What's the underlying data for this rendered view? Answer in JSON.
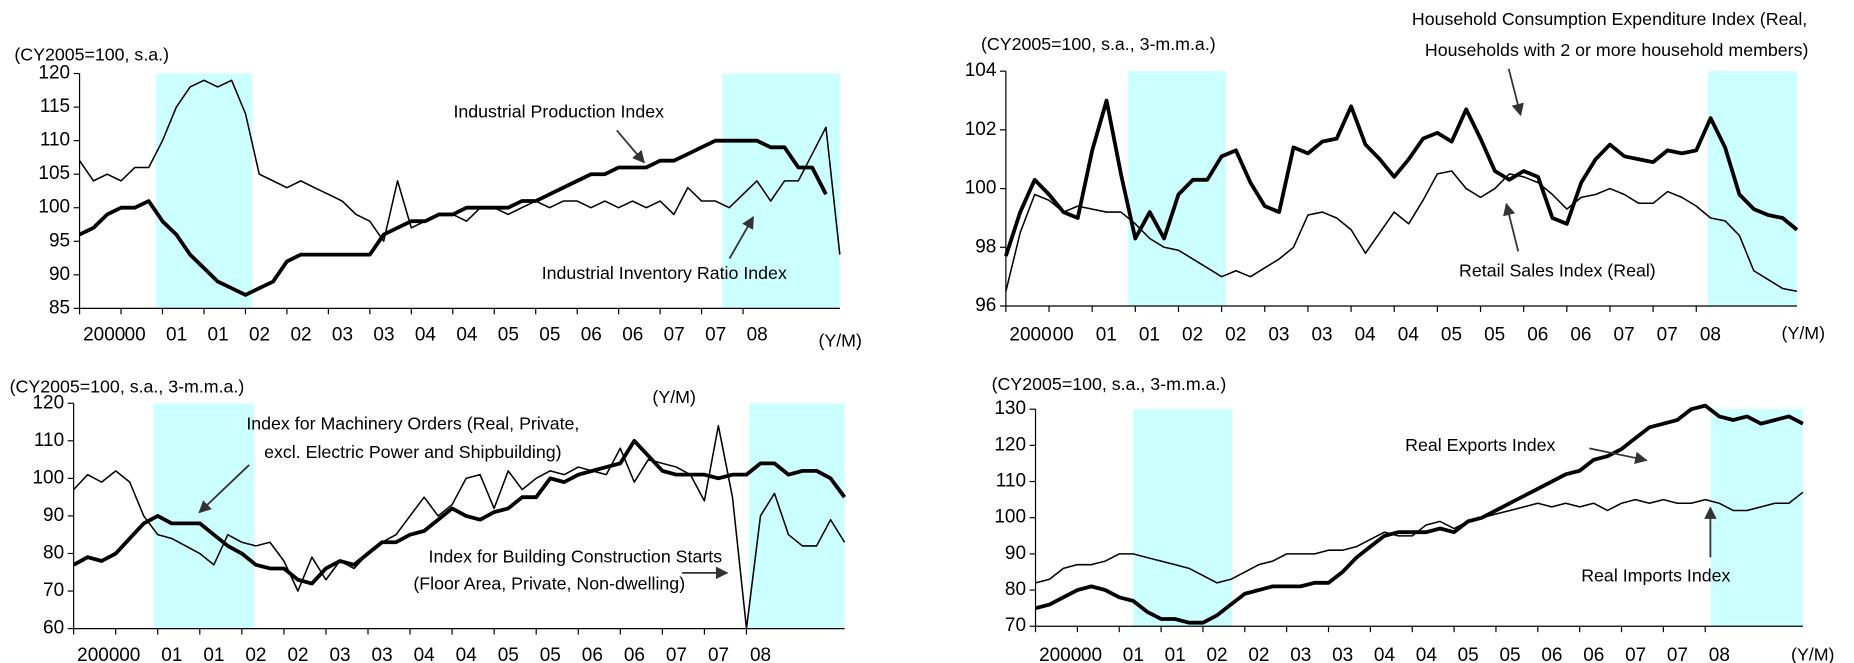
{
  "chart_data": [
    {
      "type": "line",
      "unit_label": "(CY2005=100, s.a.)",
      "x_unit": "(Y/M)",
      "categories": [
        "2000",
        null,
        null,
        "00",
        null,
        null,
        "01",
        null,
        null,
        "01",
        null,
        null,
        "02",
        null,
        null,
        "02",
        null,
        null,
        "03",
        null,
        null,
        "03",
        null,
        null,
        "04",
        null,
        null,
        "04",
        null,
        null,
        "05",
        null,
        null,
        "05",
        null,
        null,
        "06",
        null,
        null,
        "06",
        null,
        null,
        "07",
        null,
        null,
        "07",
        null,
        null,
        "08",
        null,
        null,
        null,
        null,
        null,
        null,
        null
      ],
      "ylim": [
        85,
        120
      ],
      "yticks": [
        85,
        90,
        95,
        100,
        105,
        110,
        115,
        120
      ],
      "shaded_periods": [
        [
          5.5,
          12.5
        ],
        [
          46.5,
          55
        ]
      ],
      "shade_color": "#ccffff",
      "series": [
        {
          "name": "Industrial Production Index",
          "color": "#000000",
          "thick": true,
          "values": [
            96,
            97,
            99,
            100,
            100,
            101,
            98,
            96,
            93,
            91,
            89,
            88,
            87,
            88,
            89,
            92,
            93,
            93,
            93,
            93,
            93,
            93,
            96,
            97,
            98,
            98,
            99,
            99,
            100,
            100,
            100,
            100,
            101,
            101,
            102,
            103,
            104,
            105,
            105,
            106,
            106,
            106,
            107,
            107,
            108,
            109,
            110,
            110,
            110,
            110,
            109,
            109,
            106,
            106,
            102,
            null
          ]
        },
        {
          "name": "Industrial Inventory Ratio Index",
          "color": "#000000",
          "thick": false,
          "values": [
            107,
            104,
            105,
            104,
            106,
            106,
            110,
            115,
            118,
            119,
            118,
            119,
            114,
            105,
            104,
            103,
            104,
            103,
            102,
            101,
            99,
            98,
            95,
            104,
            97,
            98,
            99,
            99,
            98,
            100,
            100,
            99,
            100,
            101,
            100,
            101,
            101,
            100,
            101,
            100,
            101,
            100,
            101,
            99,
            103,
            101,
            101,
            100,
            102,
            104,
            101,
            104,
            104,
            108,
            112,
            93
          ]
        }
      ]
    },
    {
      "type": "line",
      "unit_label": "(CY2005=100, s.a., 3-m.m.a.)",
      "x_unit": "(Y/M)",
      "categories": [
        "2000",
        null,
        null,
        "00",
        null,
        null,
        "01",
        null,
        null,
        "01",
        null,
        null,
        "02",
        null,
        null,
        "02",
        null,
        null,
        "03",
        null,
        null,
        "03",
        null,
        null,
        "04",
        null,
        null,
        "04",
        null,
        null,
        "05",
        null,
        null,
        "05",
        null,
        null,
        "06",
        null,
        null,
        "06",
        null,
        null,
        "07",
        null,
        null,
        "07",
        null,
        null,
        "08",
        null,
        null,
        null,
        null,
        null,
        null,
        null
      ],
      "ylim": [
        96,
        104
      ],
      "yticks": [
        96,
        98,
        100,
        102,
        104
      ],
      "shaded_periods": [
        [
          8.5,
          15.3
        ],
        [
          48.8,
          55
        ]
      ],
      "shade_color": "#ccffff",
      "series": [
        {
          "name": "Household Consumption Expenditure Index (Real,\nHouseholds with 2 or more household members)",
          "color": "#000000",
          "thick": true,
          "values": [
            97.7,
            99.2,
            100.3,
            99.8,
            99.2,
            99.0,
            101.3,
            103.0,
            100.5,
            98.3,
            99.2,
            98.3,
            99.8,
            100.3,
            100.3,
            101.1,
            101.3,
            100.2,
            99.4,
            99.2,
            101.4,
            101.2,
            101.6,
            101.7,
            102.8,
            101.5,
            101.0,
            100.4,
            101.0,
            101.7,
            101.9,
            101.6,
            102.7,
            101.7,
            100.6,
            100.3,
            100.6,
            100.4,
            99.0,
            98.8,
            100.2,
            101.0,
            101.5,
            101.1,
            101.0,
            100.9,
            101.3,
            101.2,
            101.3,
            102.4,
            101.4,
            99.8,
            99.3,
            99.1,
            99.0,
            98.6
          ]
        },
        {
          "name": "Retail Sales Index (Real)",
          "color": "#000000",
          "thick": false,
          "values": [
            96.5,
            98.5,
            99.8,
            99.6,
            99.2,
            99.4,
            99.3,
            99.2,
            99.2,
            98.8,
            98.3,
            98.0,
            97.9,
            97.6,
            97.3,
            97.0,
            97.2,
            97.0,
            97.3,
            97.6,
            98.0,
            99.1,
            99.2,
            99.0,
            98.6,
            97.8,
            98.5,
            99.2,
            98.8,
            99.6,
            100.5,
            100.6,
            100.0,
            99.7,
            100.0,
            100.5,
            100.4,
            100.2,
            99.8,
            99.3,
            99.7,
            99.8,
            100.0,
            99.8,
            99.5,
            99.5,
            99.9,
            99.7,
            99.4,
            99.0,
            98.9,
            98.4,
            97.2,
            96.9,
            96.6,
            96.5
          ]
        }
      ]
    },
    {
      "type": "line",
      "unit_label": "(CY2005=100, s.a., 3-m.m.a.)",
      "x_unit": "(Y/M)",
      "categories": [
        "2000",
        null,
        null,
        "00",
        null,
        null,
        "01",
        null,
        null,
        "01",
        null,
        null,
        "02",
        null,
        null,
        "02",
        null,
        null,
        "03",
        null,
        null,
        "03",
        null,
        null,
        "04",
        null,
        null,
        "04",
        null,
        null,
        "05",
        null,
        null,
        "05",
        null,
        null,
        "06",
        null,
        null,
        "06",
        null,
        null,
        "07",
        null,
        null,
        "07",
        null,
        null,
        "08",
        null,
        null,
        null,
        null,
        null,
        null,
        null
      ],
      "ylim": [
        60,
        120
      ],
      "yticks": [
        60,
        70,
        80,
        90,
        100,
        110,
        120
      ],
      "shaded_periods": [
        [
          5.7,
          12.9
        ],
        [
          48.2,
          55
        ]
      ],
      "shade_color": "#ccffff",
      "series": [
        {
          "name": "Index for Machinery Orders (Real, Private,\nexcl. Electric Power and Shipbuilding)",
          "color": "#000000",
          "thick": true,
          "values": [
            77,
            79,
            78,
            80,
            84,
            88,
            90,
            88,
            88,
            88,
            85,
            82,
            80,
            77,
            76,
            76,
            73,
            72,
            76,
            78,
            77,
            80,
            83,
            83,
            85,
            86,
            89,
            92,
            90,
            89,
            91,
            92,
            95,
            95,
            100,
            99,
            101,
            102,
            103,
            104,
            110,
            106,
            102,
            101,
            101,
            101,
            100,
            101,
            101,
            104,
            104,
            101,
            102,
            102,
            100,
            95
          ]
        },
        {
          "name": "Index for Building Construction Starts\n(Floor Area, Private, Non-dwelling)",
          "color": "#000000",
          "thick": false,
          "values": [
            97,
            101,
            99,
            102,
            99,
            90,
            85,
            84,
            82,
            80,
            77,
            85,
            83,
            82,
            83,
            78,
            70,
            79,
            73,
            78,
            76,
            80,
            83,
            85,
            90,
            95,
            90,
            93,
            100,
            101,
            92,
            102,
            97,
            100,
            102,
            101,
            103,
            102,
            101,
            108,
            99,
            105,
            104,
            103,
            101,
            94,
            114,
            95,
            60,
            90,
            96,
            85,
            82,
            82,
            89,
            83
          ]
        }
      ]
    },
    {
      "type": "line",
      "unit_label": "(CY2005=100, s.a., 3-m.m.a.)",
      "x_unit": "(Y/M)",
      "categories": [
        "2000",
        null,
        null,
        "00",
        null,
        null,
        "01",
        null,
        null,
        "01",
        null,
        null,
        "02",
        null,
        null,
        "02",
        null,
        null,
        "03",
        null,
        null,
        "03",
        null,
        null,
        "04",
        null,
        null,
        "04",
        null,
        null,
        "05",
        null,
        null,
        "05",
        null,
        null,
        "06",
        null,
        null,
        "06",
        null,
        null,
        "07",
        null,
        null,
        "07",
        null,
        null,
        "08",
        null,
        null,
        null,
        null,
        null,
        null,
        null
      ],
      "ylim": [
        70,
        130
      ],
      "yticks": [
        70,
        80,
        90,
        100,
        110,
        120,
        130
      ],
      "shaded_periods": [
        [
          7,
          14.1
        ],
        [
          48.4,
          55
        ]
      ],
      "shade_color": "#ccffff",
      "series": [
        {
          "name": "Real Exports Index",
          "color": "#000000",
          "thick": true,
          "values": [
            75,
            76,
            78,
            80,
            81,
            80,
            78,
            77,
            74,
            72,
            72,
            71,
            71,
            73,
            76,
            79,
            80,
            81,
            81,
            81,
            82,
            82,
            85,
            89,
            92,
            95,
            96,
            96,
            96,
            97,
            96,
            99,
            100,
            102,
            104,
            106,
            108,
            110,
            112,
            113,
            116,
            117,
            119,
            122,
            125,
            126,
            127,
            130,
            131,
            128,
            127,
            128,
            126,
            127,
            128,
            126
          ]
        },
        {
          "name": "Real Imports Index",
          "color": "#000000",
          "thick": false,
          "values": [
            82,
            83,
            86,
            87,
            87,
            88,
            90,
            90,
            89,
            88,
            87,
            86,
            84,
            82,
            83,
            85,
            87,
            88,
            90,
            90,
            90,
            91,
            91,
            92,
            94,
            96,
            95,
            95,
            98,
            99,
            97,
            99,
            100,
            101,
            102,
            103,
            104,
            103,
            104,
            103,
            104,
            102,
            104,
            105,
            104,
            105,
            104,
            104,
            105,
            104,
            102,
            102,
            103,
            104,
            104,
            107
          ]
        }
      ]
    }
  ]
}
